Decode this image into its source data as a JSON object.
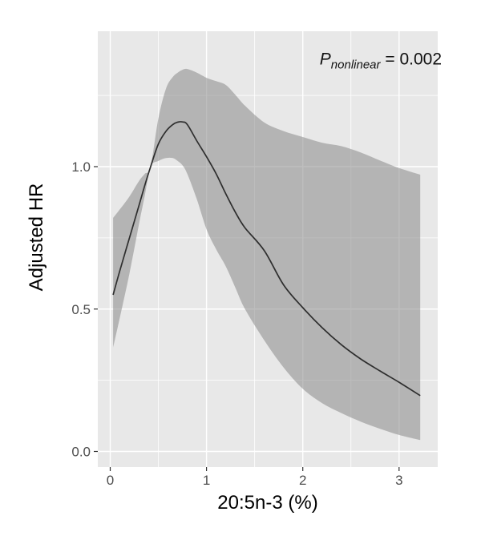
{
  "colors": {
    "background": "#ffffff",
    "panel_bg": "#e8e8e8",
    "grid": "#ffffff",
    "band": "rgba(137,137,137,0.55)",
    "line": "#2e2e2e",
    "tick_mark": "#333333",
    "tick_label": "#4d4d4d",
    "title": "#000000"
  },
  "annotation": {
    "symbol": "P",
    "subscript": "nonlinear",
    "equals_value": " = 0.002"
  },
  "chart_data": {
    "type": "line",
    "title": "",
    "xlabel": "20:5n-3 (%)",
    "ylabel": "Adjusted HR",
    "annotation": "P_nonlinear = 0.002",
    "legend": "none",
    "grid": "on",
    "panel_background": "grey (ggplot style)",
    "xlim": [
      -0.13,
      3.4
    ],
    "ylim": [
      -0.06,
      1.48
    ],
    "x_tick_values": [
      0,
      1,
      2,
      3
    ],
    "x_tick_labels": [
      "0",
      "1",
      "2",
      "3"
    ],
    "x_minor_ticks": [
      0.5,
      1.5,
      2.5
    ],
    "y_tick_values": [
      0.0,
      0.5,
      1.0
    ],
    "y_tick_labels": [
      "0.0",
      "0.5",
      "1.0"
    ],
    "y_minor_ticks": [
      0.25,
      0.75,
      1.25
    ],
    "x": [
      0.03,
      0.1,
      0.2,
      0.3,
      0.36,
      0.42,
      0.5,
      0.58,
      0.65,
      0.7,
      0.75,
      0.8,
      0.9,
      1.0,
      1.1,
      1.2,
      1.3,
      1.4,
      1.6,
      1.8,
      2.0,
      2.2,
      2.4,
      2.6,
      2.8,
      3.0,
      3.22
    ],
    "series": [
      {
        "name": "adjusted_hr",
        "values": [
          0.55,
          0.635,
          0.75,
          0.865,
          0.935,
          1.0,
          1.08,
          1.125,
          1.148,
          1.156,
          1.157,
          1.148,
          1.09,
          1.035,
          0.975,
          0.905,
          0.84,
          0.785,
          0.705,
          0.585,
          0.505,
          0.435,
          0.375,
          0.325,
          0.283,
          0.243,
          0.196
        ]
      },
      {
        "name": "ci_upper",
        "values": [
          0.82,
          0.85,
          0.895,
          0.95,
          0.975,
          1.0,
          1.17,
          1.275,
          1.315,
          1.33,
          1.34,
          1.343,
          1.33,
          1.312,
          1.3,
          1.287,
          1.252,
          1.214,
          1.155,
          1.125,
          1.104,
          1.084,
          1.072,
          1.05,
          1.022,
          0.995,
          0.972
        ]
      },
      {
        "name": "ci_lower",
        "values": [
          0.365,
          0.47,
          0.625,
          0.8,
          0.9,
          1.0,
          1.02,
          1.03,
          1.03,
          1.02,
          1.005,
          0.975,
          0.885,
          0.78,
          0.71,
          0.65,
          0.575,
          0.5,
          0.39,
          0.295,
          0.22,
          0.17,
          0.135,
          0.105,
          0.08,
          0.058,
          0.04
        ]
      }
    ]
  }
}
